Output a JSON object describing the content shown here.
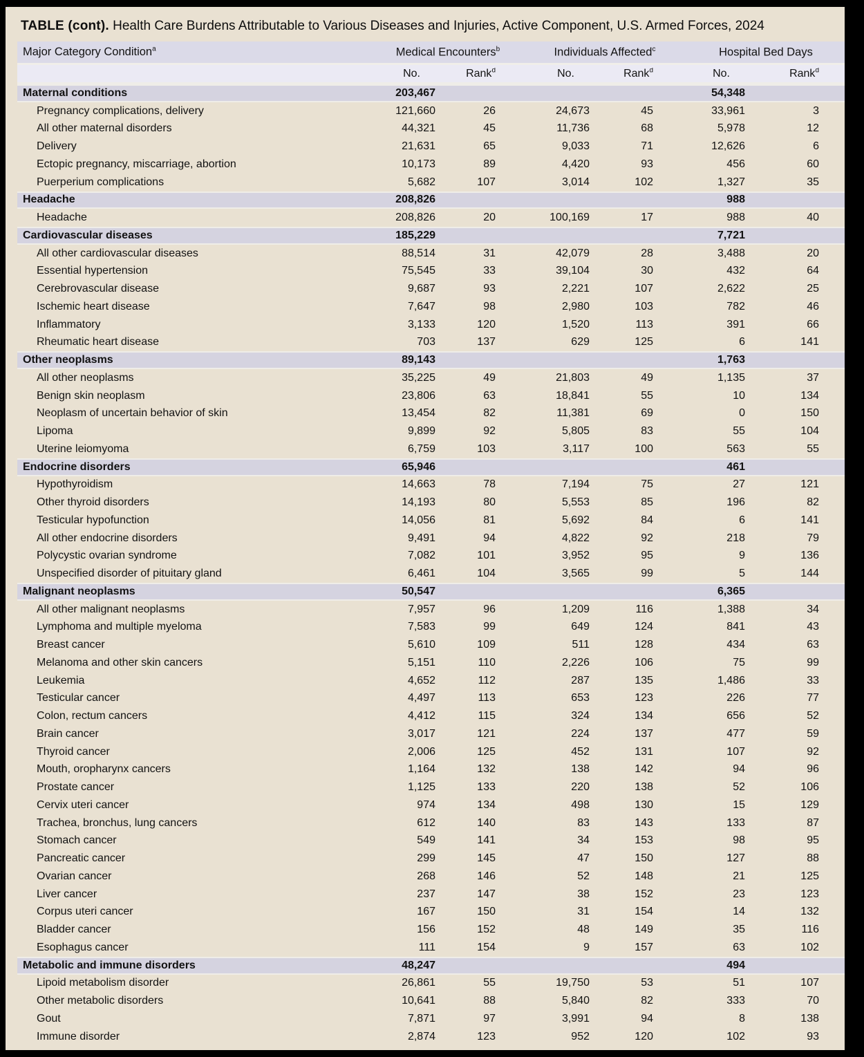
{
  "title": {
    "prefix": "TABLE (cont).",
    "text": " Health Care Burdens Attributable to Various Diseases and Injuries, Active Component, U.S. Armed Forces, 2024"
  },
  "colors": {
    "frame": "#000000",
    "page_background": "#e9e1d2",
    "header_row1": "#dbdae8",
    "header_row2": "#ebeaf4",
    "category_row": "#d5d3e0",
    "text": "#121212"
  },
  "header": {
    "condition_label": "Major Category Condition",
    "condition_sup": "a",
    "groups": [
      {
        "label": "Medical Encounters",
        "sup": "b"
      },
      {
        "label": "Individuals Affected",
        "sup": "c"
      },
      {
        "label": "Hospital Bed Days",
        "sup": ""
      }
    ],
    "sub": {
      "no_label": "No.",
      "rank_label": "Rank",
      "rank_sup": "d"
    }
  },
  "table": {
    "sections": [
      {
        "name": "Maternal conditions",
        "me_no": "203,467",
        "hbd_no": "54,348",
        "rows": [
          {
            "name": "Pregnancy complications, delivery",
            "me_no": "121,660",
            "me_rank": "26",
            "ia_no": "24,673",
            "ia_rank": "45",
            "hbd_no": "33,961",
            "hbd_rank": "3"
          },
          {
            "name": "All other maternal disorders",
            "me_no": "44,321",
            "me_rank": "45",
            "ia_no": "11,736",
            "ia_rank": "68",
            "hbd_no": "5,978",
            "hbd_rank": "12"
          },
          {
            "name": "Delivery",
            "me_no": "21,631",
            "me_rank": "65",
            "ia_no": "9,033",
            "ia_rank": "71",
            "hbd_no": "12,626",
            "hbd_rank": "6"
          },
          {
            "name": "Ectopic pregnancy, miscarriage, abortion",
            "me_no": "10,173",
            "me_rank": "89",
            "ia_no": "4,420",
            "ia_rank": "93",
            "hbd_no": "456",
            "hbd_rank": "60"
          },
          {
            "name": "Puerperium complications",
            "me_no": "5,682",
            "me_rank": "107",
            "ia_no": "3,014",
            "ia_rank": "102",
            "hbd_no": "1,327",
            "hbd_rank": "35"
          }
        ]
      },
      {
        "name": "Headache",
        "me_no": "208,826",
        "hbd_no": "988",
        "rows": [
          {
            "name": "Headache",
            "me_no": "208,826",
            "me_rank": "20",
            "ia_no": "100,169",
            "ia_rank": "17",
            "hbd_no": "988",
            "hbd_rank": "40"
          }
        ]
      },
      {
        "name": "Cardiovascular diseases",
        "me_no": "185,229",
        "hbd_no": "7,721",
        "rows": [
          {
            "name": "All other cardiovascular diseases",
            "me_no": "88,514",
            "me_rank": "31",
            "ia_no": "42,079",
            "ia_rank": "28",
            "hbd_no": "3,488",
            "hbd_rank": "20"
          },
          {
            "name": "Essential hypertension",
            "me_no": "75,545",
            "me_rank": "33",
            "ia_no": "39,104",
            "ia_rank": "30",
            "hbd_no": "432",
            "hbd_rank": "64"
          },
          {
            "name": "Cerebrovascular disease",
            "me_no": "9,687",
            "me_rank": "93",
            "ia_no": "2,221",
            "ia_rank": "107",
            "hbd_no": "2,622",
            "hbd_rank": "25"
          },
          {
            "name": "Ischemic heart disease",
            "me_no": "7,647",
            "me_rank": "98",
            "ia_no": "2,980",
            "ia_rank": "103",
            "hbd_no": "782",
            "hbd_rank": "46"
          },
          {
            "name": "Inflammatory",
            "me_no": "3,133",
            "me_rank": "120",
            "ia_no": "1,520",
            "ia_rank": "113",
            "hbd_no": "391",
            "hbd_rank": "66"
          },
          {
            "name": "Rheumatic heart disease",
            "me_no": "703",
            "me_rank": "137",
            "ia_no": "629",
            "ia_rank": "125",
            "hbd_no": "6",
            "hbd_rank": "141"
          }
        ]
      },
      {
        "name": "Other neoplasms",
        "me_no": "89,143",
        "hbd_no": "1,763",
        "rows": [
          {
            "name": "All other neoplasms",
            "me_no": "35,225",
            "me_rank": "49",
            "ia_no": "21,803",
            "ia_rank": "49",
            "hbd_no": "1,135",
            "hbd_rank": "37"
          },
          {
            "name": "Benign skin neoplasm",
            "me_no": "23,806",
            "me_rank": "63",
            "ia_no": "18,841",
            "ia_rank": "55",
            "hbd_no": "10",
            "hbd_rank": "134"
          },
          {
            "name": "Neoplasm of uncertain behavior of skin",
            "me_no": "13,454",
            "me_rank": "82",
            "ia_no": "11,381",
            "ia_rank": "69",
            "hbd_no": "0",
            "hbd_rank": "150"
          },
          {
            "name": "Lipoma",
            "me_no": "9,899",
            "me_rank": "92",
            "ia_no": "5,805",
            "ia_rank": "83",
            "hbd_no": "55",
            "hbd_rank": "104"
          },
          {
            "name": "Uterine leiomyoma",
            "me_no": "6,759",
            "me_rank": "103",
            "ia_no": "3,117",
            "ia_rank": "100",
            "hbd_no": "563",
            "hbd_rank": "55"
          }
        ]
      },
      {
        "name": "Endocrine disorders",
        "me_no": "65,946",
        "hbd_no": "461",
        "rows": [
          {
            "name": "Hypothyroidism",
            "me_no": "14,663",
            "me_rank": "78",
            "ia_no": "7,194",
            "ia_rank": "75",
            "hbd_no": "27",
            "hbd_rank": "121"
          },
          {
            "name": "Other thyroid disorders",
            "me_no": "14,193",
            "me_rank": "80",
            "ia_no": "5,553",
            "ia_rank": "85",
            "hbd_no": "196",
            "hbd_rank": "82"
          },
          {
            "name": "Testicular hypofunction",
            "me_no": "14,056",
            "me_rank": "81",
            "ia_no": "5,692",
            "ia_rank": "84",
            "hbd_no": "6",
            "hbd_rank": "141"
          },
          {
            "name": "All other endocrine disorders",
            "me_no": "9,491",
            "me_rank": "94",
            "ia_no": "4,822",
            "ia_rank": "92",
            "hbd_no": "218",
            "hbd_rank": "79"
          },
          {
            "name": "Polycystic ovarian syndrome",
            "me_no": "7,082",
            "me_rank": "101",
            "ia_no": "3,952",
            "ia_rank": "95",
            "hbd_no": "9",
            "hbd_rank": "136"
          },
          {
            "name": "Unspecified disorder of pituitary gland",
            "me_no": "6,461",
            "me_rank": "104",
            "ia_no": "3,565",
            "ia_rank": "99",
            "hbd_no": "5",
            "hbd_rank": "144"
          }
        ]
      },
      {
        "name": "Malignant neoplasms",
        "me_no": "50,547",
        "hbd_no": "6,365",
        "rows": [
          {
            "name": "All other malignant neoplasms",
            "me_no": "7,957",
            "me_rank": "96",
            "ia_no": "1,209",
            "ia_rank": "116",
            "hbd_no": "1,388",
            "hbd_rank": "34"
          },
          {
            "name": "Lymphoma and multiple myeloma",
            "me_no": "7,583",
            "me_rank": "99",
            "ia_no": "649",
            "ia_rank": "124",
            "hbd_no": "841",
            "hbd_rank": "43"
          },
          {
            "name": "Breast cancer",
            "me_no": "5,610",
            "me_rank": "109",
            "ia_no": "511",
            "ia_rank": "128",
            "hbd_no": "434",
            "hbd_rank": "63"
          },
          {
            "name": "Melanoma and other skin cancers",
            "me_no": "5,151",
            "me_rank": "110",
            "ia_no": "2,226",
            "ia_rank": "106",
            "hbd_no": "75",
            "hbd_rank": "99"
          },
          {
            "name": "Leukemia",
            "me_no": "4,652",
            "me_rank": "112",
            "ia_no": "287",
            "ia_rank": "135",
            "hbd_no": "1,486",
            "hbd_rank": "33"
          },
          {
            "name": "Testicular cancer",
            "me_no": "4,497",
            "me_rank": "113",
            "ia_no": "653",
            "ia_rank": "123",
            "hbd_no": "226",
            "hbd_rank": "77"
          },
          {
            "name": "Colon, rectum cancers",
            "me_no": "4,412",
            "me_rank": "115",
            "ia_no": "324",
            "ia_rank": "134",
            "hbd_no": "656",
            "hbd_rank": "52"
          },
          {
            "name": "Brain cancer",
            "me_no": "3,017",
            "me_rank": "121",
            "ia_no": "224",
            "ia_rank": "137",
            "hbd_no": "477",
            "hbd_rank": "59"
          },
          {
            "name": "Thyroid cancer",
            "me_no": "2,006",
            "me_rank": "125",
            "ia_no": "452",
            "ia_rank": "131",
            "hbd_no": "107",
            "hbd_rank": "92"
          },
          {
            "name": "Mouth, oropharynx cancers",
            "me_no": "1,164",
            "me_rank": "132",
            "ia_no": "138",
            "ia_rank": "142",
            "hbd_no": "94",
            "hbd_rank": "96"
          },
          {
            "name": "Prostate cancer",
            "me_no": "1,125",
            "me_rank": "133",
            "ia_no": "220",
            "ia_rank": "138",
            "hbd_no": "52",
            "hbd_rank": "106"
          },
          {
            "name": "Cervix uteri cancer",
            "me_no": "974",
            "me_rank": "134",
            "ia_no": "498",
            "ia_rank": "130",
            "hbd_no": "15",
            "hbd_rank": "129"
          },
          {
            "name": "Trachea, bronchus, lung cancers",
            "me_no": "612",
            "me_rank": "140",
            "ia_no": "83",
            "ia_rank": "143",
            "hbd_no": "133",
            "hbd_rank": "87"
          },
          {
            "name": "Stomach cancer",
            "me_no": "549",
            "me_rank": "141",
            "ia_no": "34",
            "ia_rank": "153",
            "hbd_no": "98",
            "hbd_rank": "95"
          },
          {
            "name": "Pancreatic cancer",
            "me_no": "299",
            "me_rank": "145",
            "ia_no": "47",
            "ia_rank": "150",
            "hbd_no": "127",
            "hbd_rank": "88"
          },
          {
            "name": "Ovarian cancer",
            "me_no": "268",
            "me_rank": "146",
            "ia_no": "52",
            "ia_rank": "148",
            "hbd_no": "21",
            "hbd_rank": "125"
          },
          {
            "name": "Liver cancer",
            "me_no": "237",
            "me_rank": "147",
            "ia_no": "38",
            "ia_rank": "152",
            "hbd_no": "23",
            "hbd_rank": "123"
          },
          {
            "name": "Corpus uteri cancer",
            "me_no": "167",
            "me_rank": "150",
            "ia_no": "31",
            "ia_rank": "154",
            "hbd_no": "14",
            "hbd_rank": "132"
          },
          {
            "name": "Bladder cancer",
            "me_no": "156",
            "me_rank": "152",
            "ia_no": "48",
            "ia_rank": "149",
            "hbd_no": "35",
            "hbd_rank": "116"
          },
          {
            "name": "Esophagus cancer",
            "me_no": "111",
            "me_rank": "154",
            "ia_no": "9",
            "ia_rank": "157",
            "hbd_no": "63",
            "hbd_rank": "102"
          }
        ]
      },
      {
        "name": "Metabolic and immune disorders",
        "me_no": "48,247",
        "hbd_no": "494",
        "rows": [
          {
            "name": "Lipoid metabolism disorder",
            "me_no": "26,861",
            "me_rank": "55",
            "ia_no": "19,750",
            "ia_rank": "53",
            "hbd_no": "51",
            "hbd_rank": "107"
          },
          {
            "name": "Other metabolic disorders",
            "me_no": "10,641",
            "me_rank": "88",
            "ia_no": "5,840",
            "ia_rank": "82",
            "hbd_no": "333",
            "hbd_rank": "70"
          },
          {
            "name": "Gout",
            "me_no": "7,871",
            "me_rank": "97",
            "ia_no": "3,991",
            "ia_rank": "94",
            "hbd_no": "8",
            "hbd_rank": "138"
          },
          {
            "name": "Immune disorder",
            "me_no": "2,874",
            "me_rank": "123",
            "ia_no": "952",
            "ia_rank": "120",
            "hbd_no": "102",
            "hbd_rank": "93"
          }
        ]
      }
    ]
  }
}
